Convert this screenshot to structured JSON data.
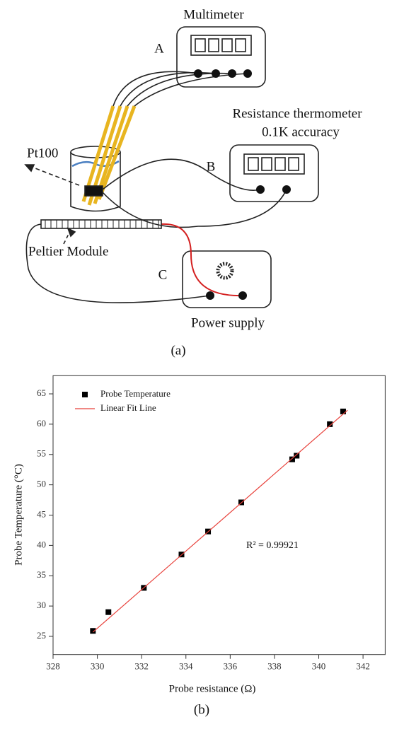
{
  "diagram": {
    "multimeter_label": "Multimeter",
    "label_a": "A",
    "thermometer_label": "Resistance thermometer",
    "thermometer_accuracy": "0.1K accuracy",
    "label_b": "B",
    "pt100_label": "Pt100",
    "peltier_label": "Peltier Module",
    "label_c": "C",
    "power_label": "Power supply",
    "caption": "(a)"
  },
  "chart_data": {
    "type": "scatter",
    "caption": "(b)",
    "x_label": "Probe resistance (Ω)",
    "y_label": "Probe Temperature (°C)",
    "annotation": "R² = 0.99921",
    "xlim": [
      328,
      343
    ],
    "ylim": [
      22,
      68
    ],
    "xticks": [
      328,
      330,
      332,
      334,
      336,
      338,
      340,
      342
    ],
    "yticks": [
      25,
      30,
      35,
      40,
      45,
      50,
      55,
      60,
      65
    ],
    "series": [
      {
        "name": "Probe Temperature",
        "type": "scatter",
        "color": "#000000",
        "x": [
          329.8,
          330.5,
          332.1,
          333.8,
          335.0,
          336.5,
          338.8,
          339.0,
          340.5,
          341.1
        ],
        "values": [
          25.9,
          29.0,
          33.0,
          38.5,
          42.3,
          47.1,
          54.2,
          54.8,
          60.0,
          62.1
        ]
      },
      {
        "name": "Linear Fit Line",
        "type": "line",
        "color": "#e8403a",
        "x": [
          329.8,
          341.3
        ],
        "values": [
          25.7,
          62.3
        ]
      }
    ]
  }
}
